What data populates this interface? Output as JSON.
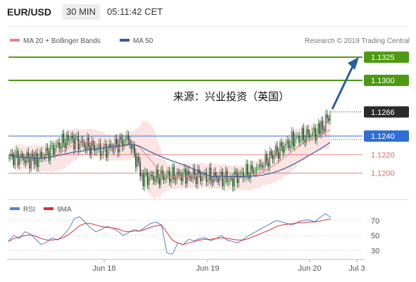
{
  "header": {
    "symbol": "EUR/USD",
    "timeframe": "30 MIN",
    "time": "05:11:42 CET"
  },
  "legend": {
    "bollinger_label": "MA 20 + Bollinger Bands",
    "bollinger_color": "#f08080",
    "ma50_label": "MA 50",
    "ma50_color": "#3a5aa0",
    "copyright": "Research © 2019 Trading Central"
  },
  "annotation": "来源：兴业投资（英国）",
  "colors": {
    "target": "#4d9a12",
    "support": "#e06a6a",
    "pivot": "#2f6fd6",
    "arrow": "#2a5f9e",
    "bull": "#2f8f3a",
    "bear": "#2b2b2b",
    "band_fill": "#fbe4e4",
    "rsi": "#5b82c8",
    "rsi_ma": "#d93030"
  },
  "chart_data": [
    {
      "type": "candlestick",
      "ylim": [
        1.1183,
        1.1335
      ],
      "x_ticks": [
        "Jun 18",
        "Jun 19",
        "Jun 20",
        "Jul 3"
      ],
      "levels": [
        {
          "label": "1.1325",
          "value": 1.1325,
          "role": "target"
        },
        {
          "label": "1.1300",
          "value": 1.13,
          "role": "target"
        },
        {
          "label": "1.1266",
          "value": 1.1266,
          "role": "current"
        },
        {
          "label": "1.1240",
          "value": 1.124,
          "role": "pivot"
        },
        {
          "label": "1.1220",
          "value": 1.122,
          "role": "support"
        },
        {
          "label": "1.1200",
          "value": 1.12,
          "role": "support"
        }
      ],
      "arrow": {
        "from": 1.1266,
        "to": 1.1322
      },
      "segments": [
        {
          "n": 18,
          "from": 1.1218,
          "to": 1.1214
        },
        {
          "n": 22,
          "from": 1.1214,
          "to": 1.1237
        },
        {
          "n": 24,
          "from": 1.1237,
          "to": 1.1224
        },
        {
          "n": 17,
          "from": 1.1224,
          "to": 1.1237
        },
        {
          "n": 10,
          "from": 1.1237,
          "to": 1.1195
        },
        {
          "n": 30,
          "from": 1.1195,
          "to": 1.1198
        },
        {
          "n": 30,
          "from": 1.1198,
          "to": 1.1194
        },
        {
          "n": 18,
          "from": 1.1194,
          "to": 1.1205
        },
        {
          "n": 12,
          "from": 1.1205,
          "to": 1.1222
        },
        {
          "n": 12,
          "from": 1.1222,
          "to": 1.1236
        },
        {
          "n": 18,
          "from": 1.1236,
          "to": 1.1245
        },
        {
          "n": 8,
          "from": 1.1245,
          "to": 1.1266
        }
      ]
    },
    {
      "type": "line",
      "name": "RSI",
      "ylim": [
        20,
        82
      ],
      "y_ticks": [
        70,
        50,
        30
      ],
      "series": [
        {
          "name": "RSI",
          "values": [
            43,
            50,
            46,
            55,
            52,
            45,
            38,
            41,
            47,
            44,
            50,
            58,
            72,
            75,
            68,
            60,
            55,
            58,
            62,
            60,
            56,
            50,
            54,
            58,
            56,
            61,
            66,
            68,
            64,
            27,
            25,
            40,
            38,
            45,
            43,
            46,
            47,
            43,
            46,
            50,
            44,
            42,
            40,
            45,
            50,
            54,
            58,
            62,
            66,
            70,
            68,
            66,
            64,
            68,
            70,
            71,
            68,
            74,
            79,
            74
          ]
        },
        {
          "name": "9MA",
          "values": [
            42,
            46,
            48,
            50,
            51,
            49,
            46,
            44,
            44,
            45,
            47,
            51,
            57,
            63,
            66,
            66,
            64,
            62,
            61,
            60,
            59,
            56,
            55,
            56,
            56,
            58,
            61,
            63,
            64,
            54,
            44,
            40,
            38,
            40,
            42,
            44,
            45,
            45,
            46,
            47,
            46,
            45,
            44,
            44,
            46,
            49,
            52,
            55,
            58,
            62,
            64,
            65,
            66,
            67,
            67,
            68,
            68,
            69,
            71,
            72
          ]
        }
      ]
    }
  ]
}
